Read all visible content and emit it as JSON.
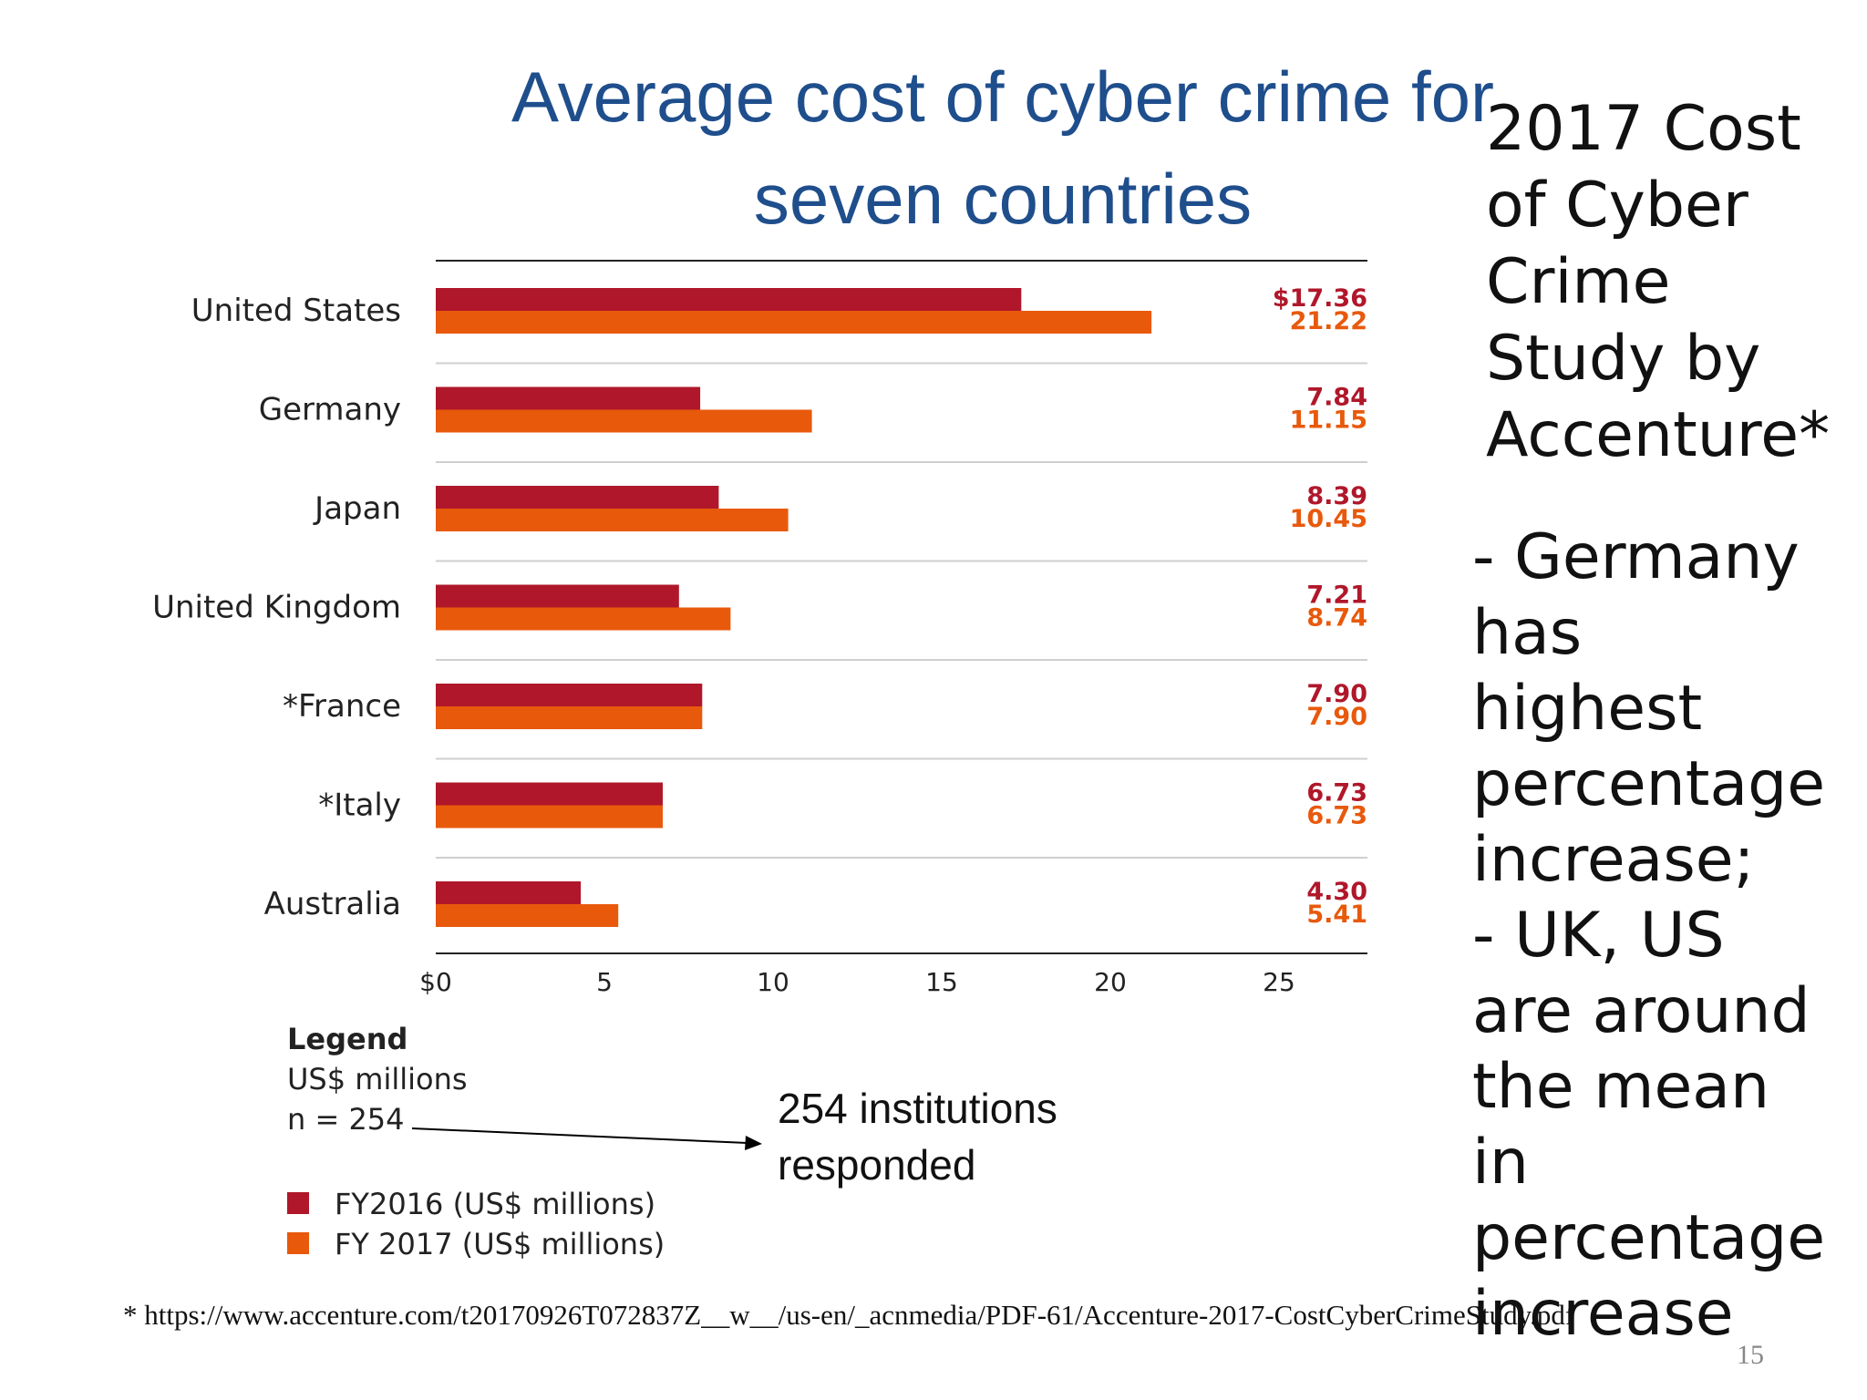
{
  "slide": {
    "title_lines": [
      "Average cost of cyber crime for",
      "seven countries"
    ],
    "side_title": "2017 Cost\nof Cyber\nCrime\nStudy by\nAccenture*",
    "side_notes": [
      "- Germany",
      "has",
      "highest",
      "percentage",
      "increase;",
      "- UK, US",
      "are around",
      "the mean",
      "in",
      "percentage",
      "increase"
    ],
    "annotation_lines": [
      "254 institutions",
      "responded"
    ],
    "footnote": "* https://www.accenture.com/t20170926T072837Z__w__/us-en/_acnmedia/PDF-61/Accenture-2017-CostCyberCrimeStudy.pdf",
    "page_number": "15"
  },
  "legend": {
    "title": "Legend",
    "unit": "US$ millions",
    "n": "n = 254",
    "items": [
      {
        "label": "FY2016 (US$ millions)",
        "color": "#b0172a"
      },
      {
        "label": "FY 2017 (US$ millions)",
        "color": "#e8590c"
      }
    ]
  },
  "chart_data": {
    "type": "bar",
    "orientation": "horizontal",
    "categories": [
      "United States",
      "Germany",
      "Japan",
      "United Kingdom",
      "*France",
      "*Italy",
      "Australia"
    ],
    "series": [
      {
        "name": "FY2016 (US$ millions)",
        "color": "#b0172a",
        "values": [
          17.36,
          7.84,
          8.39,
          7.21,
          7.9,
          6.73,
          4.3
        ],
        "labels": [
          "$17.36",
          "7.84",
          "8.39",
          "7.21",
          "7.90",
          "6.73",
          "4.30"
        ]
      },
      {
        "name": "FY 2017 (US$ millions)",
        "color": "#e8590c",
        "values": [
          21.22,
          11.15,
          10.45,
          8.74,
          7.9,
          6.73,
          5.41
        ],
        "labels": [
          "21.22",
          "11.15",
          "10.45",
          "8.74",
          "7.90",
          "6.73",
          "5.41"
        ]
      }
    ],
    "x_ticks": [
      0,
      5,
      10,
      15,
      20,
      25
    ],
    "x_tick_labels": [
      "$0",
      "5",
      "10",
      "15",
      "20",
      "25"
    ],
    "xlim": [
      0,
      27.5
    ],
    "title": "Average cost of cyber crime for seven countries",
    "xlabel": "",
    "ylabel": "",
    "legend_position": "bottom-left"
  }
}
